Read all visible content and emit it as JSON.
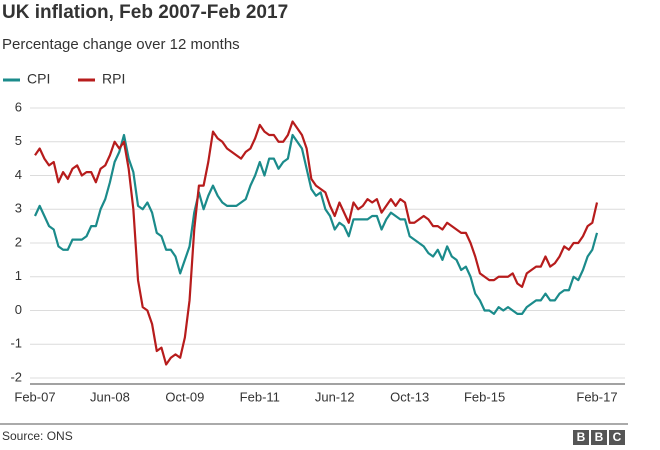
{
  "chart_data": {
    "type": "line",
    "title": "UK inflation, Feb 2007-Feb 2017",
    "subtitle": "Percentage change over 12 months",
    "source": "Source: ONS",
    "logo": [
      "B",
      "B",
      "C"
    ],
    "categories": [
      "Feb-07",
      null,
      null,
      null,
      null,
      null,
      null,
      null,
      null,
      null,
      null,
      null,
      null,
      null,
      null,
      null,
      "Jun-08",
      null,
      null,
      null,
      null,
      null,
      null,
      null,
      null,
      null,
      null,
      null,
      null,
      null,
      null,
      null,
      "Oct-09",
      null,
      null,
      null,
      null,
      null,
      null,
      null,
      null,
      null,
      null,
      null,
      null,
      null,
      null,
      null,
      "Feb-11",
      null,
      null,
      null,
      null,
      null,
      null,
      null,
      null,
      null,
      null,
      null,
      null,
      null,
      null,
      null,
      "Jun-12",
      null,
      null,
      null,
      null,
      null,
      null,
      null,
      null,
      null,
      null,
      null,
      null,
      null,
      null,
      null,
      "Oct-13",
      null,
      null,
      null,
      null,
      null,
      null,
      null,
      null,
      null,
      null,
      null,
      null,
      null,
      null,
      null,
      "Feb-15",
      null,
      null,
      null,
      null,
      null,
      null,
      null,
      null,
      null,
      null,
      null,
      null,
      null,
      null,
      null,
      null,
      null,
      null,
      null,
      null,
      null,
      null,
      null,
      "Feb-17"
    ],
    "series": [
      {
        "name": "CPI",
        "color": "#1b8b8b",
        "values": [
          2.8,
          3.1,
          2.8,
          2.5,
          2.4,
          1.9,
          1.8,
          1.8,
          2.1,
          2.1,
          2.1,
          2.2,
          2.5,
          2.5,
          3.0,
          3.3,
          3.8,
          4.4,
          4.7,
          5.2,
          4.5,
          4.1,
          3.1,
          3.0,
          3.2,
          2.9,
          2.3,
          2.2,
          1.8,
          1.8,
          1.6,
          1.1,
          1.5,
          1.9,
          2.9,
          3.5,
          3.0,
          3.4,
          3.7,
          3.4,
          3.2,
          3.1,
          3.1,
          3.1,
          3.2,
          3.3,
          3.7,
          4.0,
          4.4,
          4.0,
          4.5,
          4.5,
          4.2,
          4.4,
          4.5,
          5.2,
          5.0,
          4.8,
          4.2,
          3.6,
          3.4,
          3.5,
          3.0,
          2.8,
          2.4,
          2.6,
          2.5,
          2.2,
          2.7,
          2.7,
          2.7,
          2.7,
          2.8,
          2.8,
          2.4,
          2.7,
          2.9,
          2.8,
          2.7,
          2.7,
          2.2,
          2.1,
          2.0,
          1.9,
          1.7,
          1.6,
          1.8,
          1.5,
          1.9,
          1.6,
          1.5,
          1.2,
          1.3,
          1.0,
          0.5,
          0.3,
          0.0,
          0.0,
          -0.1,
          0.1,
          0.0,
          0.1,
          0.0,
          -0.1,
          -0.1,
          0.1,
          0.2,
          0.3,
          0.3,
          0.5,
          0.3,
          0.3,
          0.5,
          0.6,
          0.6,
          1.0,
          0.9,
          1.2,
          1.6,
          1.8,
          2.3
        ]
      },
      {
        "name": "RPI",
        "color": "#b71c1c",
        "values": [
          4.6,
          4.8,
          4.5,
          4.3,
          4.4,
          3.8,
          4.1,
          3.9,
          4.2,
          4.3,
          4.0,
          4.1,
          4.1,
          3.8,
          4.2,
          4.3,
          4.6,
          5.0,
          4.8,
          5.0,
          4.2,
          3.0,
          0.9,
          0.1,
          0.0,
          -0.4,
          -1.2,
          -1.1,
          -1.6,
          -1.4,
          -1.3,
          -1.4,
          -0.8,
          0.3,
          2.4,
          3.7,
          3.7,
          4.4,
          5.3,
          5.1,
          5.0,
          4.8,
          4.7,
          4.6,
          4.5,
          4.7,
          4.8,
          5.1,
          5.5,
          5.3,
          5.2,
          5.2,
          5.0,
          5.0,
          5.2,
          5.6,
          5.4,
          5.2,
          4.8,
          3.9,
          3.7,
          3.6,
          3.5,
          3.1,
          2.8,
          3.2,
          2.9,
          2.6,
          3.2,
          3.0,
          3.1,
          3.3,
          3.2,
          3.3,
          2.9,
          3.1,
          3.3,
          3.1,
          3.3,
          3.2,
          2.6,
          2.6,
          2.7,
          2.8,
          2.7,
          2.5,
          2.5,
          2.4,
          2.6,
          2.5,
          2.4,
          2.3,
          2.3,
          2.0,
          1.6,
          1.1,
          1.0,
          0.9,
          0.9,
          1.0,
          1.0,
          1.0,
          1.1,
          0.8,
          0.7,
          1.1,
          1.2,
          1.3,
          1.3,
          1.6,
          1.3,
          1.4,
          1.6,
          1.9,
          1.8,
          2.0,
          2.0,
          2.2,
          2.5,
          2.6,
          3.2
        ]
      }
    ],
    "ylim": [
      -2,
      6
    ],
    "yticks": [
      -2,
      -1,
      0,
      1,
      2,
      3,
      4,
      5,
      6
    ],
    "grid": true
  }
}
